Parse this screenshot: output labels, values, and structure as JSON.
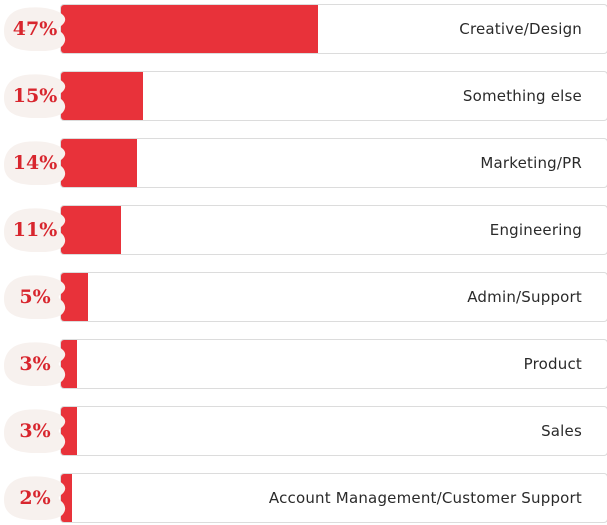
{
  "chart_data": {
    "type": "bar",
    "orientation": "horizontal",
    "categories": [
      "Creative/Design",
      "Something else",
      "Marketing/PR",
      "Engineering",
      "Admin/Support",
      "Product",
      "Sales",
      "Account Management/Customer Support"
    ],
    "values": [
      47,
      15,
      14,
      11,
      5,
      3,
      3,
      2
    ],
    "value_labels": [
      "47%",
      "15%",
      "14%",
      "11%",
      "5%",
      "3%",
      "3%",
      "2%"
    ],
    "xlim": [
      0,
      100
    ],
    "title": "",
    "xlabel": "",
    "ylabel": "",
    "grid": false,
    "legend": "none"
  },
  "colors": {
    "bar_fill": "#e8323a",
    "badge_fill": "#f7f1ee",
    "percent_text": "#d8262e",
    "track_border": "#dcdcdc",
    "label_text": "#2a2a2a"
  }
}
